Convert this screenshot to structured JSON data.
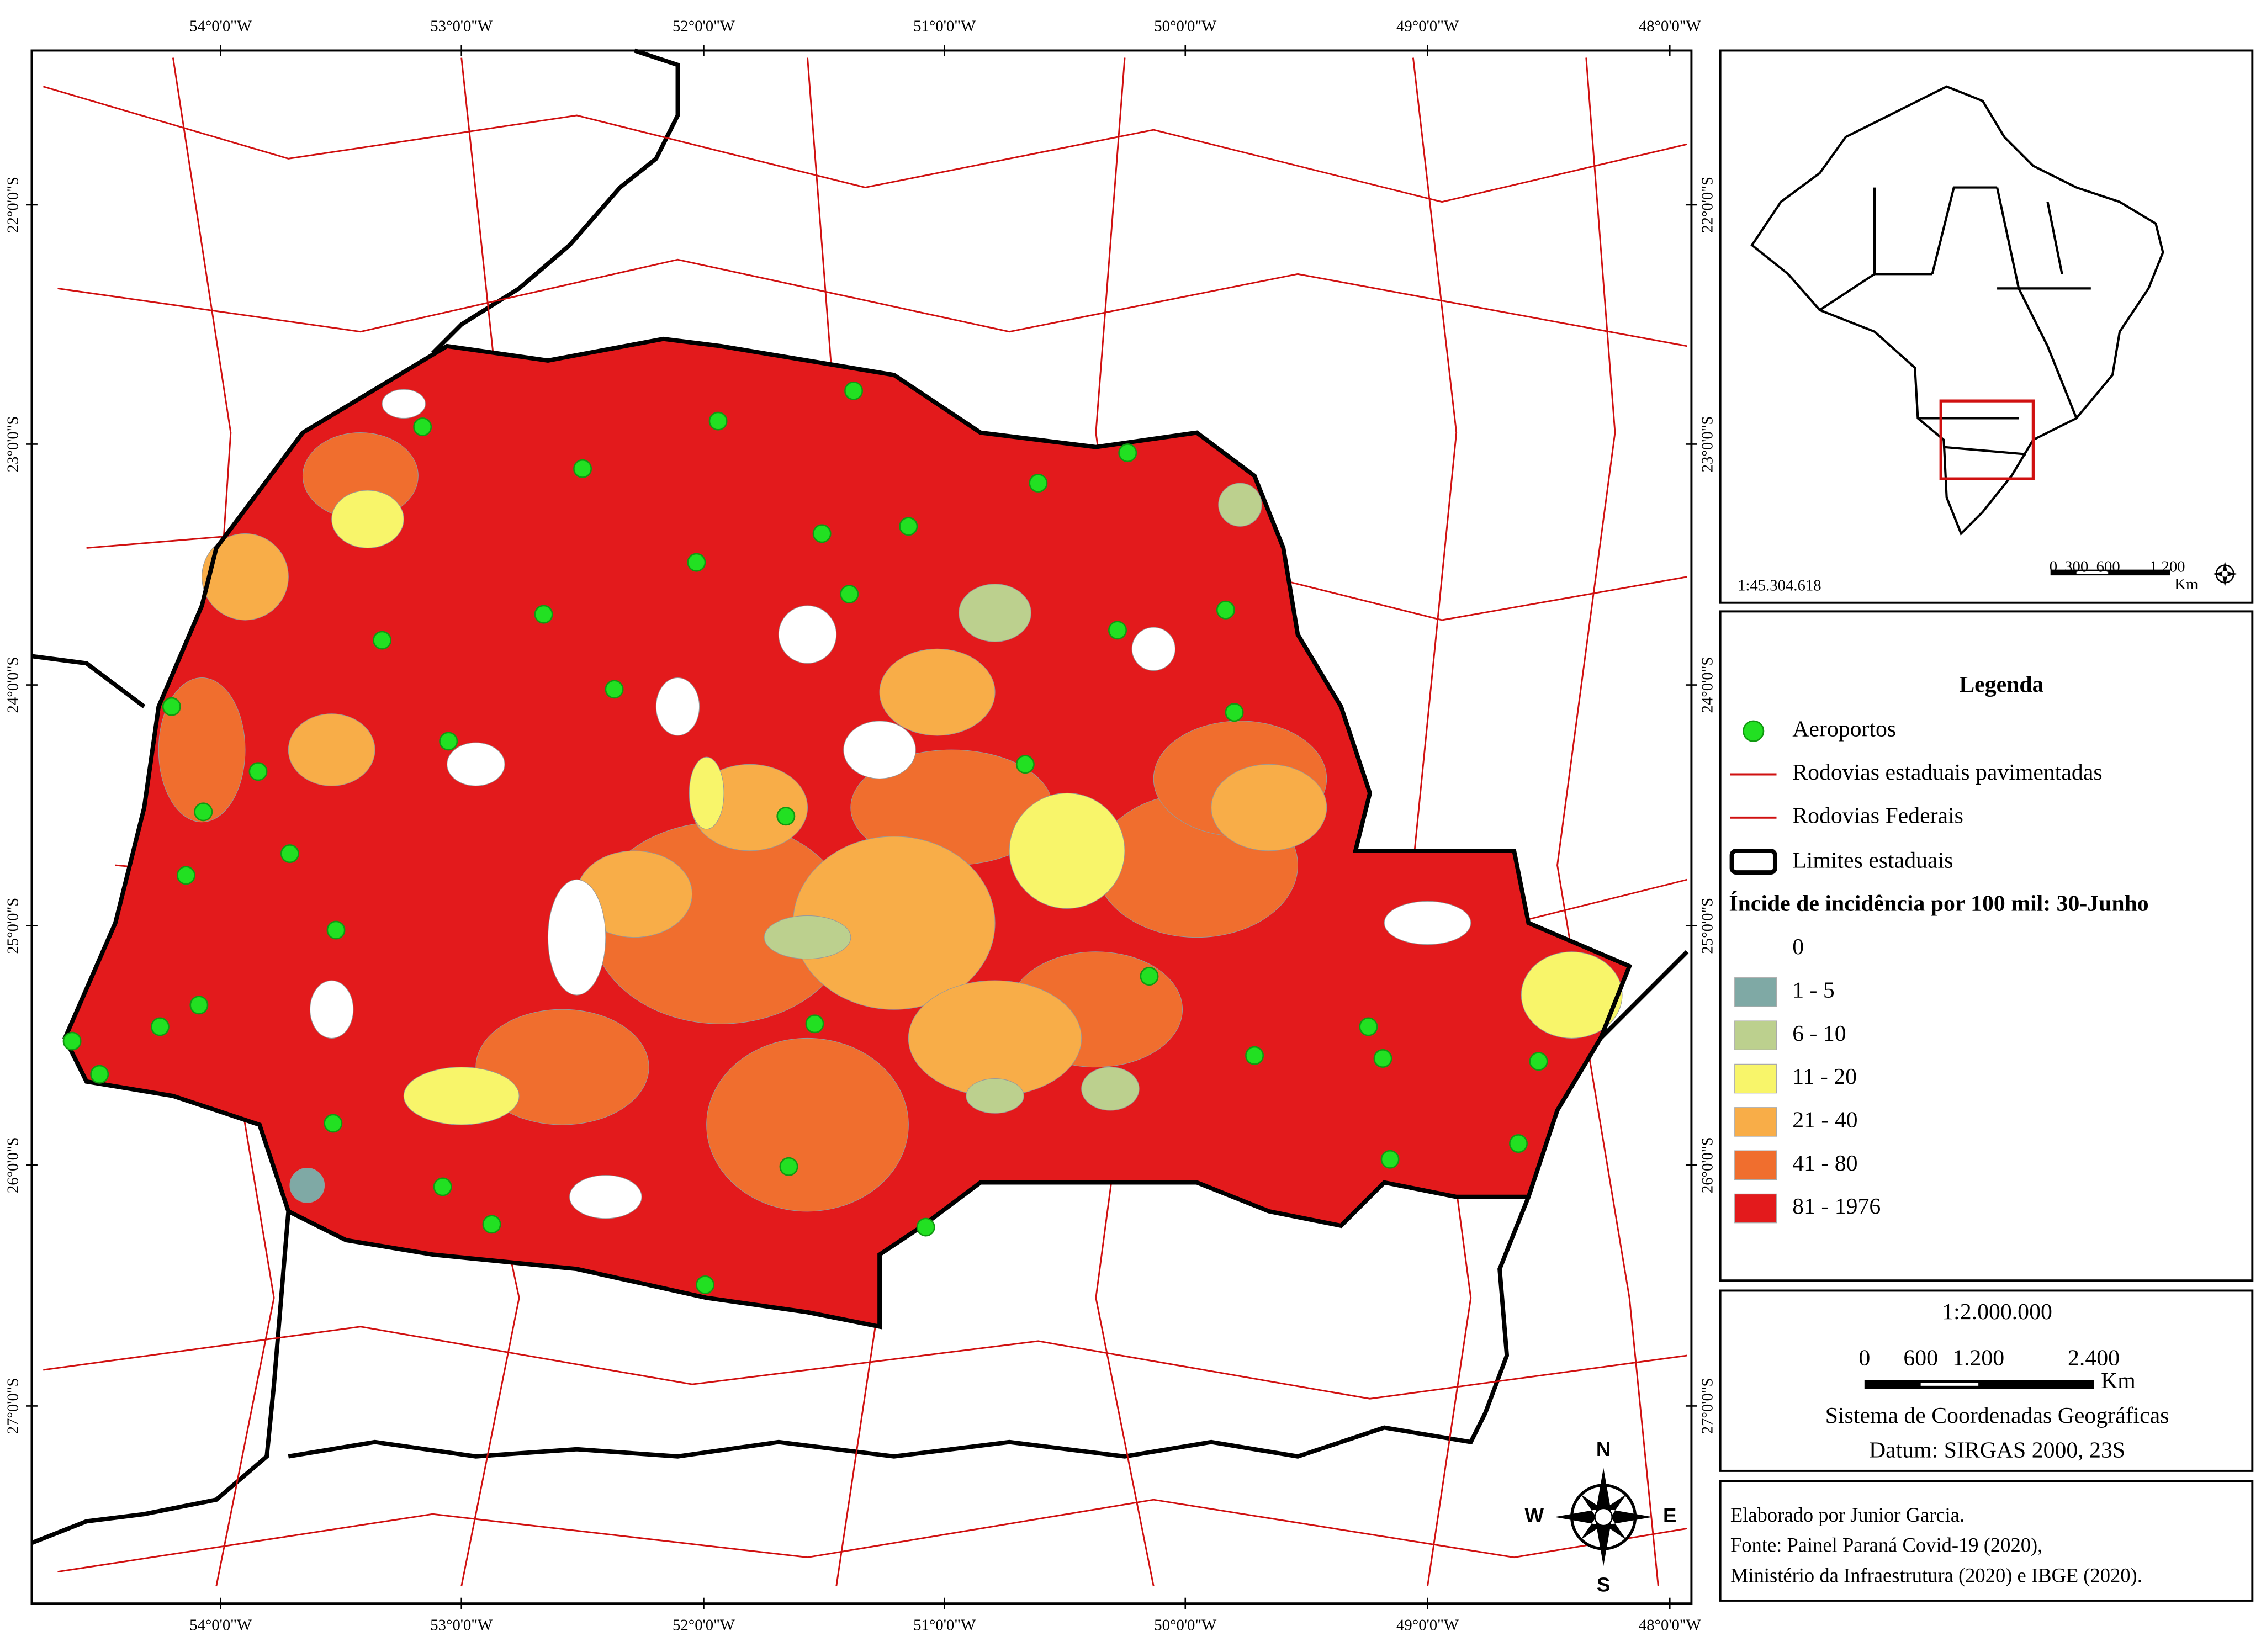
{
  "map": {
    "longitude_labels": [
      "54°0'0\"W",
      "53°0'0\"W",
      "52°0'0\"W",
      "51°0'0\"W",
      "50°0'0\"W",
      "49°0'0\"W",
      "48°0'0\"W"
    ],
    "latitude_labels": [
      "22°0'0\"S",
      "23°0'0\"S",
      "24°0'0\"S",
      "25°0'0\"S",
      "26°0'0\"S",
      "27°0'0\"S"
    ],
    "compass": {
      "n": "N",
      "s": "S",
      "e": "E",
      "w": "W"
    }
  },
  "inset": {
    "scale": "1:45.304.618",
    "scalebar_labels": [
      "0",
      "300",
      "600",
      "1.200"
    ],
    "unit": "Km"
  },
  "legend": {
    "title": "Legenda",
    "items": [
      "Aeroportos",
      "Rodovias estaduais pavimentadas",
      "Rodovias Federais",
      "Limites estaduais"
    ],
    "classes_title": "Íncide de incidência por 100 mil: 30-Junho",
    "classes": [
      {
        "label": "0",
        "color": "#ffffff"
      },
      {
        "label": "1 - 5",
        "color": "#7fa9a5"
      },
      {
        "label": "6 - 10",
        "color": "#bcd08e"
      },
      {
        "label": "11 - 20",
        "color": "#f8f56a"
      },
      {
        "label": "21 - 40",
        "color": "#f8ad48"
      },
      {
        "label": "41 - 80",
        "color": "#f06e2e"
      },
      {
        "label": "81 - 1976",
        "color": "#e31a1c"
      }
    ]
  },
  "scale": {
    "ratio": "1:2.000.000",
    "scalebar_labels": [
      "0",
      "600",
      "1.200",
      "2.400"
    ],
    "unit": "Km",
    "crs": "Sistema de Coordenadas Geográficas",
    "datum": "Datum: SIRGAS 2000, 23S"
  },
  "credits": [
    "Elaborado por Junior Garcia.",
    "Fonte: Painel Paraná Covid-19 (2020),",
    "Ministério da Infraestrutura (2020) e IBGE (2020)."
  ]
}
